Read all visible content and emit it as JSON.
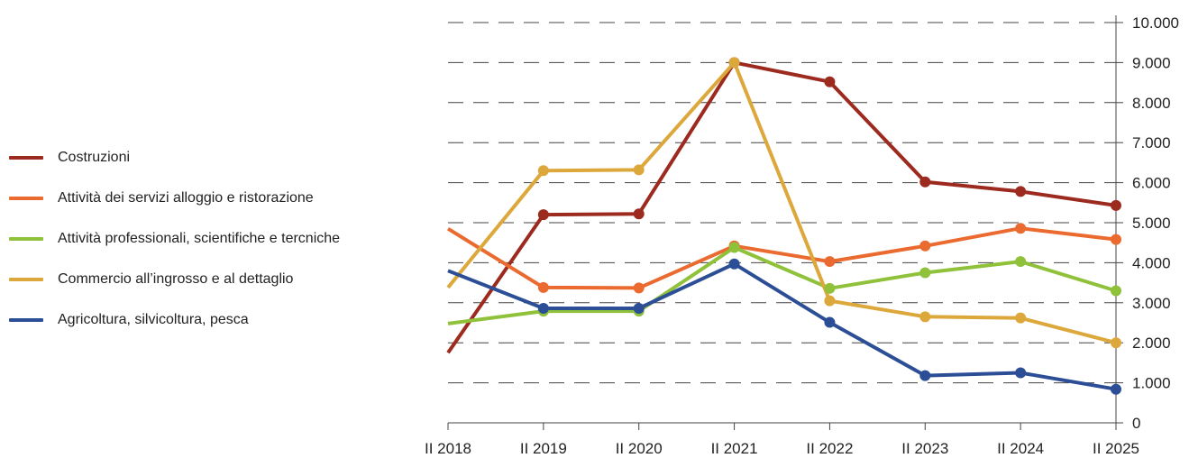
{
  "chart_data": {
    "type": "line",
    "title": "",
    "xlabel": "",
    "ylabel": "",
    "categories": [
      "II 2018",
      "II 2019",
      "II 2020",
      "II 2021",
      "II 2022",
      "II 2023",
      "II 2024",
      "II 2025"
    ],
    "y_tick_labels": [
      "0",
      "1.000",
      "2.000",
      "3.000",
      "4.000",
      "5.000",
      "6.000",
      "7.000",
      "8.000",
      "9.000",
      "10.000"
    ],
    "y_ticks": [
      0,
      1000,
      2000,
      3000,
      4000,
      5000,
      6000,
      7000,
      8000,
      9000,
      10000
    ],
    "ylim": [
      0,
      10000
    ],
    "y_axis_side": "right",
    "grid": "horizontal dashed",
    "legend_position": "left",
    "series": [
      {
        "name": "Costruzioni",
        "color": "#9c2a1f",
        "values": [
          1750,
          5200,
          5220,
          9000,
          8520,
          6020,
          5780,
          5430
        ]
      },
      {
        "name": "Attività dei servizi alloggio e ristorazione",
        "color": "#ea6a2f",
        "values": [
          4850,
          3380,
          3370,
          4420,
          4030,
          4420,
          4860,
          4580
        ]
      },
      {
        "name": "Attività professionali, scientifiche e tercniche",
        "color": "#8fc13b",
        "values": [
          2480,
          2790,
          2790,
          4380,
          3360,
          3750,
          4030,
          3300
        ]
      },
      {
        "name": "Commercio all’ingrosso e al dettaglio",
        "color": "#dda83b",
        "values": [
          3380,
          6300,
          6320,
          9000,
          3050,
          2650,
          2620,
          2000
        ]
      },
      {
        "name": "Agricoltura, silvicoltura, pesca",
        "color": "#2b4e96",
        "values": [
          3800,
          2860,
          2860,
          3970,
          2510,
          1180,
          1250,
          840
        ]
      }
    ]
  }
}
